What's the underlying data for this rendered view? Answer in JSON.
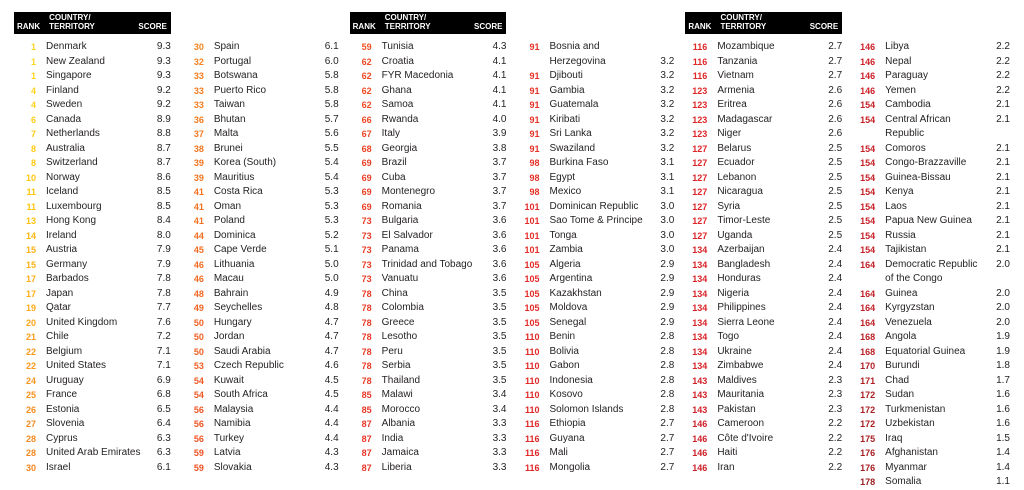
{
  "header": {
    "rank": "RANK",
    "country": "COUNTRY/\nTERRITORY",
    "score": "SCORE"
  },
  "colors": {
    "text": "#231f20",
    "header_bg": "#000000",
    "header_fg": "#ffffff",
    "rank_scale": [
      [
        9.3,
        "#ffd41e"
      ],
      [
        8.4,
        "#ffc30b"
      ],
      [
        7.6,
        "#faa61a"
      ],
      [
        6.8,
        "#f6921e"
      ],
      [
        6.0,
        "#f58220"
      ],
      [
        5.0,
        "#f26b21"
      ],
      [
        4.3,
        "#ef5123"
      ],
      [
        3.6,
        "#e93c26"
      ],
      [
        3.0,
        "#e42d28"
      ],
      [
        2.5,
        "#dd2428"
      ],
      [
        2.2,
        "#cd2027"
      ],
      [
        1.8,
        "#b21f24"
      ],
      [
        1.1,
        "#991b1e"
      ]
    ]
  },
  "columns": [
    {
      "show_header": true,
      "entries": [
        [
          "1",
          "Denmark",
          "9.3"
        ],
        [
          "1",
          "New Zealand",
          "9.3"
        ],
        [
          "1",
          "Singapore",
          "9.3"
        ],
        [
          "4",
          "Finland",
          "9.2"
        ],
        [
          "4",
          "Sweden",
          "9.2"
        ],
        [
          "6",
          "Canada",
          "8.9"
        ],
        [
          "7",
          "Netherlands",
          "8.8"
        ],
        [
          "8",
          "Australia",
          "8.7"
        ],
        [
          "8",
          "Switzerland",
          "8.7"
        ],
        [
          "10",
          "Norway",
          "8.6"
        ],
        [
          "11",
          "Iceland",
          "8.5"
        ],
        [
          "11",
          "Luxembourg",
          "8.5"
        ],
        [
          "13",
          "Hong Kong",
          "8.4"
        ],
        [
          "14",
          "Ireland",
          "8.0"
        ],
        [
          "15",
          "Austria",
          "7.9"
        ],
        [
          "15",
          "Germany",
          "7.9"
        ],
        [
          "17",
          "Barbados",
          "7.8"
        ],
        [
          "17",
          "Japan",
          "7.8"
        ],
        [
          "19",
          "Qatar",
          "7.7"
        ],
        [
          "20",
          "United Kingdom",
          "7.6"
        ],
        [
          "21",
          "Chile",
          "7.2"
        ],
        [
          "22",
          "Belgium",
          "7.1"
        ],
        [
          "22",
          "United States",
          "7.1"
        ],
        [
          "24",
          "Uruguay",
          "6.9"
        ],
        [
          "25",
          "France",
          "6.8"
        ],
        [
          "26",
          "Estonia",
          "6.5"
        ],
        [
          "27",
          "Slovenia",
          "6.4"
        ],
        [
          "28",
          "Cyprus",
          "6.3"
        ],
        [
          "28",
          "United Arab Emirates",
          "6.3"
        ],
        [
          "30",
          "Israel",
          "6.1"
        ]
      ]
    },
    {
      "show_header": false,
      "entries": [
        [
          "30",
          "Spain",
          "6.1"
        ],
        [
          "32",
          "Portugal",
          "6.0"
        ],
        [
          "33",
          "Botswana",
          "5.8"
        ],
        [
          "33",
          "Puerto Rico",
          "5.8"
        ],
        [
          "33",
          "Taiwan",
          "5.8"
        ],
        [
          "36",
          "Bhutan",
          "5.7"
        ],
        [
          "37",
          "Malta",
          "5.6"
        ],
        [
          "38",
          "Brunei",
          "5.5"
        ],
        [
          "39",
          "Korea (South)",
          "5.4"
        ],
        [
          "39",
          "Mauritius",
          "5.4"
        ],
        [
          "41",
          "Costa Rica",
          "5.3"
        ],
        [
          "41",
          "Oman",
          "5.3"
        ],
        [
          "41",
          "Poland",
          "5.3"
        ],
        [
          "44",
          "Dominica",
          "5.2"
        ],
        [
          "45",
          "Cape Verde",
          "5.1"
        ],
        [
          "46",
          "Lithuania",
          "5.0"
        ],
        [
          "46",
          "Macau",
          "5.0"
        ],
        [
          "48",
          "Bahrain",
          "4.9"
        ],
        [
          "49",
          "Seychelles",
          "4.8"
        ],
        [
          "50",
          "Hungary",
          "4.7"
        ],
        [
          "50",
          "Jordan",
          "4.7"
        ],
        [
          "50",
          "Saudi Arabia",
          "4.7"
        ],
        [
          "53",
          "Czech Republic",
          "4.6"
        ],
        [
          "54",
          "Kuwait",
          "4.5"
        ],
        [
          "54",
          "South Africa",
          "4.5"
        ],
        [
          "56",
          "Malaysia",
          "4.4"
        ],
        [
          "56",
          "Namibia",
          "4.4"
        ],
        [
          "56",
          "Turkey",
          "4.4"
        ],
        [
          "59",
          "Latvia",
          "4.3"
        ],
        [
          "59",
          "Slovakia",
          "4.3"
        ]
      ]
    },
    {
      "show_header": true,
      "entries": [
        [
          "59",
          "Tunisia",
          "4.3"
        ],
        [
          "62",
          "Croatia",
          "4.1"
        ],
        [
          "62",
          "FYR Macedonia",
          "4.1"
        ],
        [
          "62",
          "Ghana",
          "4.1"
        ],
        [
          "62",
          "Samoa",
          "4.1"
        ],
        [
          "66",
          "Rwanda",
          "4.0"
        ],
        [
          "67",
          "Italy",
          "3.9"
        ],
        [
          "68",
          "Georgia",
          "3.8"
        ],
        [
          "69",
          "Brazil",
          "3.7"
        ],
        [
          "69",
          "Cuba",
          "3.7"
        ],
        [
          "69",
          "Montenegro",
          "3.7"
        ],
        [
          "69",
          "Romania",
          "3.7"
        ],
        [
          "73",
          "Bulgaria",
          "3.6"
        ],
        [
          "73",
          "El Salvador",
          "3.6"
        ],
        [
          "73",
          "Panama",
          "3.6"
        ],
        [
          "73",
          "Trinidad and Tobago",
          "3.6"
        ],
        [
          "73",
          "Vanuatu",
          "3.6"
        ],
        [
          "78",
          "China",
          "3.5"
        ],
        [
          "78",
          "Colombia",
          "3.5"
        ],
        [
          "78",
          "Greece",
          "3.5"
        ],
        [
          "78",
          "Lesotho",
          "3.5"
        ],
        [
          "78",
          "Peru",
          "3.5"
        ],
        [
          "78",
          "Serbia",
          "3.5"
        ],
        [
          "78",
          "Thailand",
          "3.5"
        ],
        [
          "85",
          "Malawi",
          "3.4"
        ],
        [
          "85",
          "Morocco",
          "3.4"
        ],
        [
          "87",
          "Albania",
          "3.3"
        ],
        [
          "87",
          "India",
          "3.3"
        ],
        [
          "87",
          "Jamaica",
          "3.3"
        ],
        [
          "87",
          "Liberia",
          "3.3"
        ]
      ]
    },
    {
      "show_header": false,
      "entries": [
        [
          "91",
          "Bosnia and\nHerzegovina",
          "3.2",
          "bottom"
        ],
        [
          "91",
          "Djibouti",
          "3.2"
        ],
        [
          "91",
          "Gambia",
          "3.2"
        ],
        [
          "91",
          "Guatemala",
          "3.2"
        ],
        [
          "91",
          "Kiribati",
          "3.2"
        ],
        [
          "91",
          "Sri Lanka",
          "3.2"
        ],
        [
          "91",
          "Swaziland",
          "3.2"
        ],
        [
          "98",
          "Burkina Faso",
          "3.1"
        ],
        [
          "98",
          "Egypt",
          "3.1"
        ],
        [
          "98",
          "Mexico",
          "3.1"
        ],
        [
          "101",
          "Dominican Republic",
          "3.0"
        ],
        [
          "101",
          "Sao Tome & Principe",
          "3.0"
        ],
        [
          "101",
          "Tonga",
          "3.0"
        ],
        [
          "101",
          "Zambia",
          "3.0"
        ],
        [
          "105",
          "Algeria",
          "2.9"
        ],
        [
          "105",
          "Argentina",
          "2.9"
        ],
        [
          "105",
          "Kazakhstan",
          "2.9"
        ],
        [
          "105",
          "Moldova",
          "2.9"
        ],
        [
          "105",
          "Senegal",
          "2.9"
        ],
        [
          "110",
          "Benin",
          "2.8"
        ],
        [
          "110",
          "Bolivia",
          "2.8"
        ],
        [
          "110",
          "Gabon",
          "2.8"
        ],
        [
          "110",
          "Indonesia",
          "2.8"
        ],
        [
          "110",
          "Kosovo",
          "2.8"
        ],
        [
          "110",
          "Solomon Islands",
          "2.8"
        ],
        [
          "116",
          "Ethiopia",
          "2.7"
        ],
        [
          "116",
          "Guyana",
          "2.7"
        ],
        [
          "116",
          "Mali",
          "2.7"
        ],
        [
          "116",
          "Mongolia",
          "2.7"
        ]
      ]
    },
    {
      "show_header": true,
      "entries": [
        [
          "116",
          "Mozambique",
          "2.7"
        ],
        [
          "116",
          "Tanzania",
          "2.7"
        ],
        [
          "116",
          "Vietnam",
          "2.7"
        ],
        [
          "123",
          "Armenia",
          "2.6"
        ],
        [
          "123",
          "Eritrea",
          "2.6"
        ],
        [
          "123",
          "Madagascar",
          "2.6"
        ],
        [
          "123",
          "Niger",
          "2.6"
        ],
        [
          "127",
          "Belarus",
          "2.5"
        ],
        [
          "127",
          "Ecuador",
          "2.5"
        ],
        [
          "127",
          "Lebanon",
          "2.5"
        ],
        [
          "127",
          "Nicaragua",
          "2.5"
        ],
        [
          "127",
          "Syria",
          "2.5"
        ],
        [
          "127",
          "Timor-Leste",
          "2.5"
        ],
        [
          "127",
          "Uganda",
          "2.5"
        ],
        [
          "134",
          "Azerbaijan",
          "2.4"
        ],
        [
          "134",
          "Bangladesh",
          "2.4"
        ],
        [
          "134",
          "Honduras",
          "2.4"
        ],
        [
          "134",
          "Nigeria",
          "2.4"
        ],
        [
          "134",
          "Philippines",
          "2.4"
        ],
        [
          "134",
          "Sierra Leone",
          "2.4"
        ],
        [
          "134",
          "Togo",
          "2.4"
        ],
        [
          "134",
          "Ukraine",
          "2.4"
        ],
        [
          "134",
          "Zimbabwe",
          "2.4"
        ],
        [
          "143",
          "Maldives",
          "2.3"
        ],
        [
          "143",
          "Mauritania",
          "2.3"
        ],
        [
          "143",
          "Pakistan",
          "2.3"
        ],
        [
          "146",
          "Cameroon",
          "2.2"
        ],
        [
          "146",
          "Côte d'Ivoire",
          "2.2"
        ],
        [
          "146",
          "Haiti",
          "2.2"
        ],
        [
          "146",
          "Iran",
          "2.2"
        ]
      ]
    },
    {
      "show_header": false,
      "entries": [
        [
          "146",
          "Libya",
          "2.2"
        ],
        [
          "146",
          "Nepal",
          "2.2"
        ],
        [
          "146",
          "Paraguay",
          "2.2"
        ],
        [
          "146",
          "Yemen",
          "2.2"
        ],
        [
          "154",
          "Cambodia",
          "2.1"
        ],
        [
          "154",
          "Central African\nRepublic",
          "2.1"
        ],
        [
          "154",
          "Comoros",
          "2.1"
        ],
        [
          "154",
          "Congo-Brazzaville",
          "2.1"
        ],
        [
          "154",
          "Guinea-Bissau",
          "2.1"
        ],
        [
          "154",
          "Kenya",
          "2.1"
        ],
        [
          "154",
          "Laos",
          "2.1"
        ],
        [
          "154",
          "Papua New Guinea",
          "2.1"
        ],
        [
          "154",
          "Russia",
          "2.1"
        ],
        [
          "154",
          "Tajikistan",
          "2.1"
        ],
        [
          "164",
          "Democratic Republic\nof the Congo",
          "2.0"
        ],
        [
          "164",
          "Guinea",
          "2.0"
        ],
        [
          "164",
          "Kyrgyzstan",
          "2.0"
        ],
        [
          "164",
          "Venezuela",
          "2.0"
        ],
        [
          "168",
          "Angola",
          "1.9"
        ],
        [
          "168",
          "Equatorial Guinea",
          "1.9"
        ],
        [
          "170",
          "Burundi",
          "1.8"
        ],
        [
          "171",
          "Chad",
          "1.7"
        ],
        [
          "172",
          "Sudan",
          "1.6"
        ],
        [
          "172",
          "Turkmenistan",
          "1.6"
        ],
        [
          "172",
          "Uzbekistan",
          "1.6"
        ],
        [
          "175",
          "Iraq",
          "1.5"
        ],
        [
          "176",
          "Afghanistan",
          "1.4"
        ],
        [
          "176",
          "Myanmar",
          "1.4"
        ],
        [
          "178",
          "Somalia",
          "1.1"
        ]
      ]
    }
  ]
}
